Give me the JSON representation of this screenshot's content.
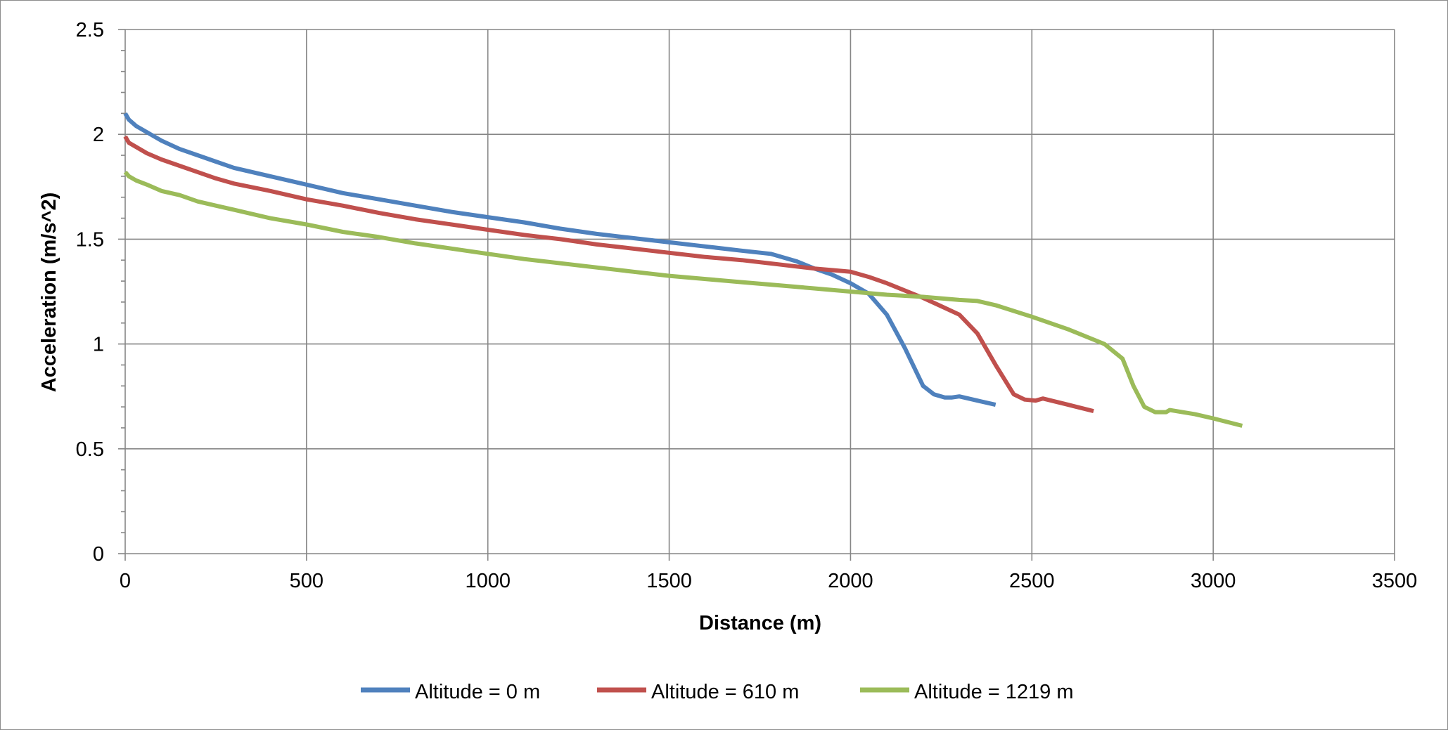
{
  "chart_data": {
    "type": "line",
    "xlabel": "Distance (m)",
    "ylabel": "Acceleration (m/s^2)",
    "xlim": [
      0,
      3500
    ],
    "ylim": [
      0,
      2.5
    ],
    "x_ticks": [
      "0",
      "500",
      "1000",
      "1500",
      "2000",
      "2500",
      "3000",
      "3500"
    ],
    "y_ticks": [
      "0",
      "0.5",
      "1",
      "1.5",
      "2",
      "2.5"
    ],
    "grid": true,
    "legend_position": "bottom",
    "series": [
      {
        "name": "Altitude = 0 m",
        "color": "#4f81bd",
        "points": [
          [
            0,
            2.1
          ],
          [
            10,
            2.07
          ],
          [
            30,
            2.04
          ],
          [
            60,
            2.01
          ],
          [
            100,
            1.97
          ],
          [
            150,
            1.93
          ],
          [
            200,
            1.9
          ],
          [
            250,
            1.87
          ],
          [
            300,
            1.84
          ],
          [
            400,
            1.8
          ],
          [
            500,
            1.76
          ],
          [
            600,
            1.72
          ],
          [
            700,
            1.69
          ],
          [
            800,
            1.66
          ],
          [
            900,
            1.63
          ],
          [
            1000,
            1.605
          ],
          [
            1100,
            1.58
          ],
          [
            1200,
            1.55
          ],
          [
            1300,
            1.525
          ],
          [
            1400,
            1.505
          ],
          [
            1500,
            1.485
          ],
          [
            1600,
            1.465
          ],
          [
            1700,
            1.445
          ],
          [
            1780,
            1.43
          ],
          [
            1850,
            1.395
          ],
          [
            1900,
            1.36
          ],
          [
            1950,
            1.33
          ],
          [
            2000,
            1.29
          ],
          [
            2050,
            1.24
          ],
          [
            2100,
            1.14
          ],
          [
            2150,
            0.98
          ],
          [
            2200,
            0.8
          ],
          [
            2230,
            0.76
          ],
          [
            2260,
            0.745
          ],
          [
            2280,
            0.745
          ],
          [
            2300,
            0.75
          ],
          [
            2350,
            0.73
          ],
          [
            2400,
            0.71
          ]
        ]
      },
      {
        "name": "Altitude = 610 m",
        "color": "#c0504d",
        "points": [
          [
            0,
            1.99
          ],
          [
            10,
            1.96
          ],
          [
            30,
            1.94
          ],
          [
            60,
            1.91
          ],
          [
            100,
            1.88
          ],
          [
            150,
            1.85
          ],
          [
            200,
            1.82
          ],
          [
            250,
            1.79
          ],
          [
            300,
            1.765
          ],
          [
            400,
            1.73
          ],
          [
            500,
            1.69
          ],
          [
            600,
            1.66
          ],
          [
            700,
            1.625
          ],
          [
            800,
            1.595
          ],
          [
            900,
            1.57
          ],
          [
            1000,
            1.545
          ],
          [
            1100,
            1.52
          ],
          [
            1200,
            1.5
          ],
          [
            1300,
            1.475
          ],
          [
            1400,
            1.455
          ],
          [
            1500,
            1.435
          ],
          [
            1600,
            1.415
          ],
          [
            1700,
            1.4
          ],
          [
            1800,
            1.38
          ],
          [
            1900,
            1.36
          ],
          [
            2000,
            1.345
          ],
          [
            2050,
            1.32
          ],
          [
            2100,
            1.29
          ],
          [
            2200,
            1.22
          ],
          [
            2250,
            1.18
          ],
          [
            2300,
            1.14
          ],
          [
            2350,
            1.05
          ],
          [
            2400,
            0.9
          ],
          [
            2450,
            0.76
          ],
          [
            2480,
            0.735
          ],
          [
            2510,
            0.73
          ],
          [
            2530,
            0.74
          ],
          [
            2600,
            0.71
          ],
          [
            2670,
            0.68
          ]
        ]
      },
      {
        "name": "Altitude = 1219 m",
        "color": "#9bbb59",
        "points": [
          [
            0,
            1.82
          ],
          [
            10,
            1.8
          ],
          [
            30,
            1.78
          ],
          [
            60,
            1.76
          ],
          [
            100,
            1.73
          ],
          [
            150,
            1.71
          ],
          [
            200,
            1.68
          ],
          [
            250,
            1.66
          ],
          [
            300,
            1.64
          ],
          [
            400,
            1.6
          ],
          [
            500,
            1.57
          ],
          [
            600,
            1.535
          ],
          [
            700,
            1.51
          ],
          [
            800,
            1.48
          ],
          [
            900,
            1.455
          ],
          [
            1000,
            1.43
          ],
          [
            1100,
            1.405
          ],
          [
            1200,
            1.385
          ],
          [
            1300,
            1.365
          ],
          [
            1400,
            1.345
          ],
          [
            1500,
            1.325
          ],
          [
            1600,
            1.31
          ],
          [
            1700,
            1.295
          ],
          [
            1800,
            1.28
          ],
          [
            1900,
            1.265
          ],
          [
            2000,
            1.25
          ],
          [
            2100,
            1.235
          ],
          [
            2200,
            1.225
          ],
          [
            2300,
            1.21
          ],
          [
            2350,
            1.205
          ],
          [
            2400,
            1.185
          ],
          [
            2500,
            1.13
          ],
          [
            2600,
            1.07
          ],
          [
            2700,
            1.0
          ],
          [
            2750,
            0.93
          ],
          [
            2780,
            0.8
          ],
          [
            2810,
            0.7
          ],
          [
            2840,
            0.675
          ],
          [
            2870,
            0.675
          ],
          [
            2880,
            0.685
          ],
          [
            2950,
            0.665
          ],
          [
            3000,
            0.645
          ],
          [
            3080,
            0.61
          ]
        ]
      }
    ]
  }
}
